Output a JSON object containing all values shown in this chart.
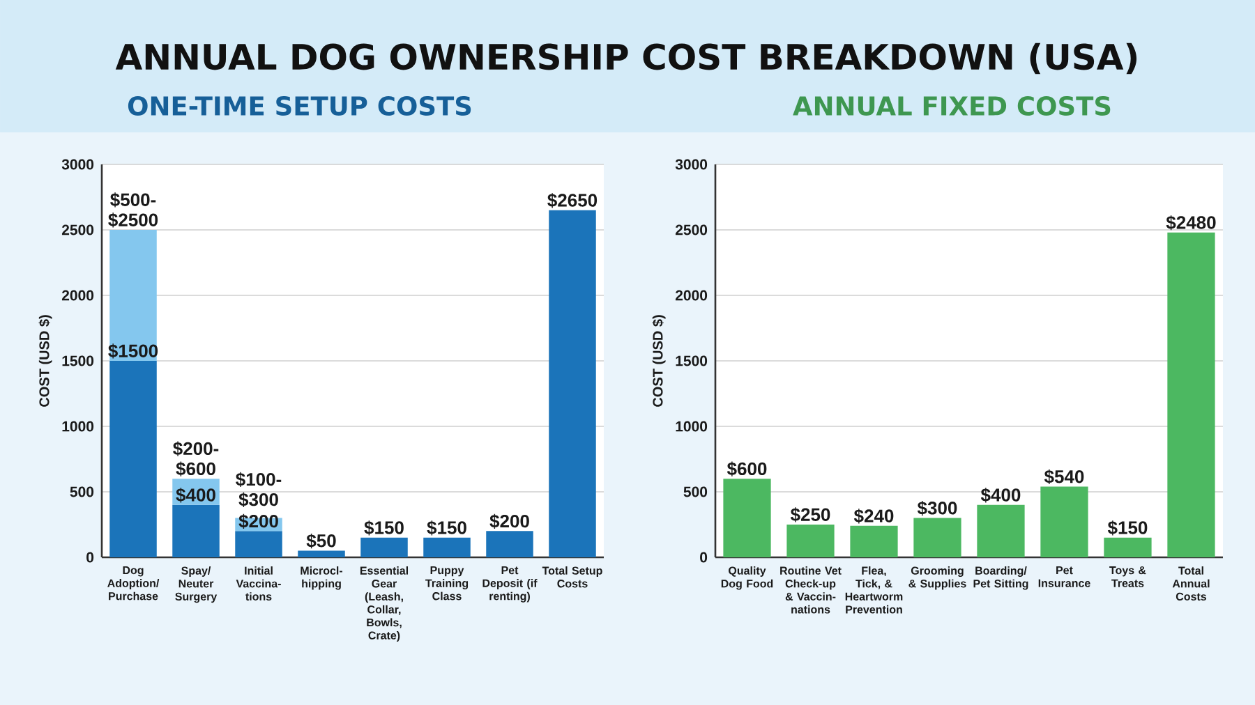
{
  "chart_data": [
    {
      "type": "bar",
      "title": "ANNUAL DOG OWNERSHIP COST BREAKDOWN (USA)",
      "subtitle": "ONE-TIME SETUP COSTS",
      "ylabel": "COST (USD $)",
      "categories": [
        "Dog Adoption/ Purchase",
        "Spay/ Neuter Surgery",
        "Initial Vaccina-tions",
        "Microcl-hipping",
        "Essential Gear (Leash, Collar, Bowls, Crate)",
        "Puppy Training Class",
        "Pet Deposit (if renting)",
        "Total Setup Costs"
      ],
      "stacked": true,
      "series": [
        {
          "color": "#1b74ba",
          "values": [
            1500,
            400,
            200,
            50,
            150,
            150,
            200,
            2650
          ],
          "value_labels": [
            "$1500",
            "$400",
            "$200",
            "$50",
            "$150",
            "$150",
            "$200",
            "$2650"
          ]
        },
        {
          "color": "#84c7ee",
          "values": [
            1000,
            200,
            100,
            null,
            null,
            null,
            null,
            null
          ],
          "value_labels": [
            "$500-$2500",
            "$200-$600",
            "$100-$300",
            null,
            null,
            null,
            null,
            null
          ]
        }
      ],
      "ylim": [
        0,
        3000
      ],
      "yticks": [
        0,
        500,
        1000,
        1500,
        2000,
        2500,
        3000
      ],
      "grid": "y"
    },
    {
      "type": "bar",
      "subtitle": "ANNUAL FIXED COSTS",
      "ylabel": "COST (USD $)",
      "categories": [
        "Quality Dog Food",
        "Routine Vet Check-up & Vaccin-nations",
        "Flea, Tick, & Heartworm Prevention",
        "Grooming & Supplies",
        "Boarding/ Pet Sitting",
        "Pet Insurance",
        "Toys & Treats",
        "Total Annual Costs"
      ],
      "series": [
        {
          "color": "#4cb861",
          "values": [
            600,
            250,
            240,
            300,
            400,
            540,
            150,
            2480
          ],
          "value_labels": [
            "$600",
            "$250",
            "$240",
            "$300",
            "$400",
            "$540",
            "$150",
            "$2480"
          ]
        }
      ],
      "ylim": [
        0,
        3000
      ],
      "yticks": [
        0,
        500,
        1000,
        1500,
        2000,
        2500,
        3000
      ],
      "grid": "y"
    }
  ]
}
